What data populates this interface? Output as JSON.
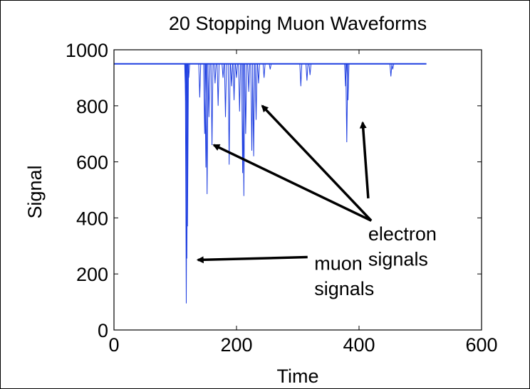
{
  "chart_data": {
    "type": "line",
    "title": "20 Stopping Muon Waveforms",
    "xlabel": "Time",
    "ylabel": "Signal",
    "xlim": [
      0,
      600
    ],
    "ylim": [
      0,
      1000
    ],
    "xticks": [
      "0",
      "200",
      "400",
      "600"
    ],
    "yticks": [
      "0",
      "200",
      "400",
      "600",
      "800",
      "1000"
    ],
    "grid": false,
    "line_color": "#1f3fe0",
    "baseline": 950,
    "x_range": [
      0,
      510
    ],
    "dips": [
      {
        "x": 118,
        "y": 95
      },
      {
        "x": 119,
        "y": 255
      },
      {
        "x": 120,
        "y": 370
      },
      {
        "x": 117,
        "y": 820
      },
      {
        "x": 122,
        "y": 900
      },
      {
        "x": 140,
        "y": 830
      },
      {
        "x": 148,
        "y": 700
      },
      {
        "x": 150,
        "y": 580
      },
      {
        "x": 152,
        "y": 485
      },
      {
        "x": 155,
        "y": 760
      },
      {
        "x": 160,
        "y": 660
      },
      {
        "x": 165,
        "y": 880
      },
      {
        "x": 170,
        "y": 800
      },
      {
        "x": 178,
        "y": 900
      },
      {
        "x": 182,
        "y": 760
      },
      {
        "x": 188,
        "y": 590
      },
      {
        "x": 192,
        "y": 870
      },
      {
        "x": 196,
        "y": 820
      },
      {
        "x": 200,
        "y": 900
      },
      {
        "x": 205,
        "y": 780
      },
      {
        "x": 210,
        "y": 560
      },
      {
        "x": 212,
        "y": 478
      },
      {
        "x": 215,
        "y": 700
      },
      {
        "x": 220,
        "y": 850
      },
      {
        "x": 225,
        "y": 640
      },
      {
        "x": 228,
        "y": 620
      },
      {
        "x": 232,
        "y": 750
      },
      {
        "x": 236,
        "y": 880
      },
      {
        "x": 245,
        "y": 900
      },
      {
        "x": 255,
        "y": 930
      },
      {
        "x": 305,
        "y": 870
      },
      {
        "x": 315,
        "y": 890
      },
      {
        "x": 320,
        "y": 910
      },
      {
        "x": 378,
        "y": 870
      },
      {
        "x": 380,
        "y": 670
      },
      {
        "x": 382,
        "y": 820
      },
      {
        "x": 452,
        "y": 905
      },
      {
        "x": 455,
        "y": 930
      }
    ],
    "annotations": [
      {
        "text": "muon",
        "text_x": 327,
        "text_y": 215
      },
      {
        "text": "signals",
        "text_x": 327,
        "text_y": 125
      },
      {
        "text": "electron",
        "text_x": 415,
        "text_y": 320
      },
      {
        "text": "signals",
        "text_x": 415,
        "text_y": 230
      }
    ],
    "arrows": [
      {
        "from": [
          316,
          260
        ],
        "to": [
          137,
          250
        ]
      },
      {
        "from": [
          420,
          390
        ],
        "to": [
          242,
          800
        ]
      },
      {
        "from": [
          420,
          390
        ],
        "to": [
          163,
          660
        ]
      },
      {
        "from": [
          415,
          470
        ],
        "to": [
          406,
          740
        ]
      }
    ]
  }
}
